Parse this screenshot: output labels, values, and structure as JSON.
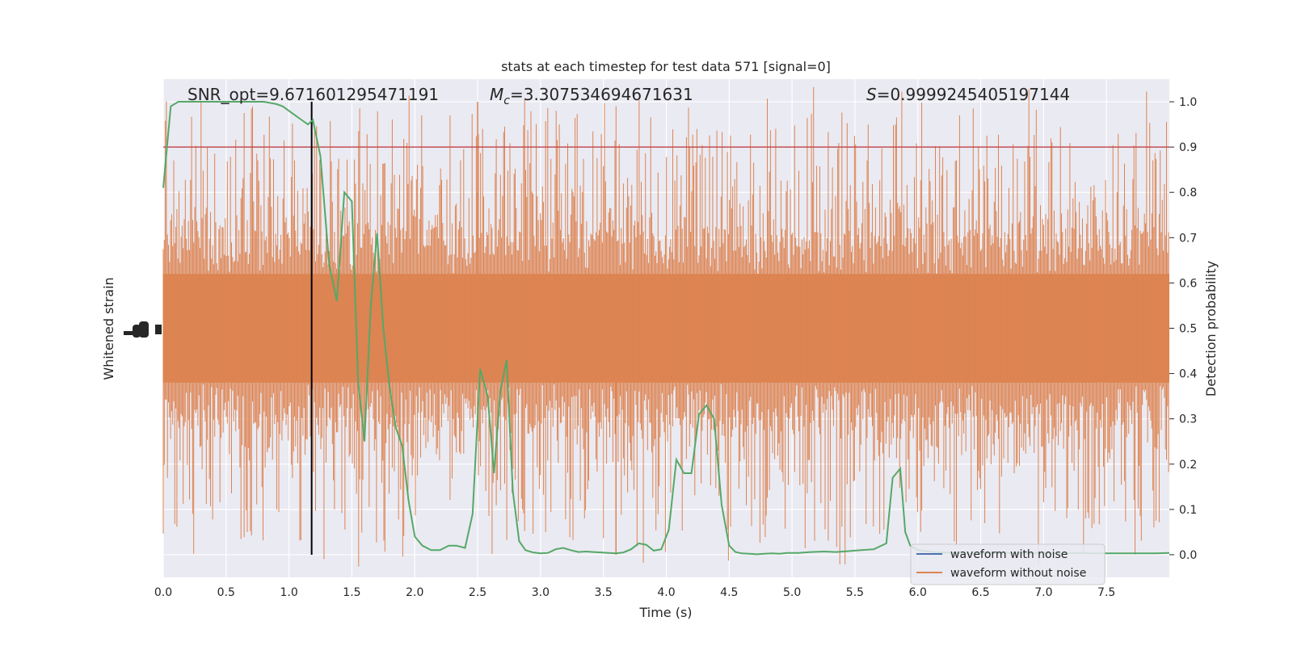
{
  "chart_data": {
    "type": "line",
    "title": "stats at each timestep for test data 571 [signal=0]",
    "xlabel": "Time (s)",
    "ylabel_left": "Whitened strain",
    "ylabel_right": "Detection probability",
    "xlim": [
      0.0,
      8.0
    ],
    "ylim_right": [
      -0.05,
      1.05
    ],
    "x_ticks": [
      "0.0",
      "0.5",
      "1.0",
      "1.5",
      "2.0",
      "2.5",
      "3.0",
      "3.5",
      "4.0",
      "4.5",
      "5.0",
      "5.5",
      "6.0",
      "6.5",
      "7.0",
      "7.5"
    ],
    "y_ticks_right": [
      "0.0",
      "0.1",
      "0.2",
      "0.3",
      "0.4",
      "0.5",
      "0.6",
      "0.7",
      "0.8",
      "0.9",
      "1.0"
    ],
    "grid": true,
    "annotations": {
      "snr": "SNR_opt=9.671601295471191",
      "mc_symbol": "M",
      "mc_sub": "c",
      "mc_value": "=3.307534694671631",
      "s_symbol": "S",
      "s_value": "=0.9999245405197144"
    },
    "threshold": 0.9,
    "marker_time": 1.18,
    "series": [
      {
        "name": "waveform with noise",
        "color": "#4c72b0",
        "values": []
      },
      {
        "name": "waveform without noise",
        "color": "#dd8452",
        "style": "dense-noise",
        "values": []
      },
      {
        "color": "#55a868",
        "x": [
          0.0,
          0.06,
          0.12,
          0.18,
          0.24,
          0.3,
          0.4,
          0.5,
          0.6,
          0.7,
          0.8,
          0.9,
          0.95,
          1.0,
          1.05,
          1.1,
          1.15,
          1.19,
          1.25,
          1.32,
          1.38,
          1.44,
          1.5,
          1.55,
          1.6,
          1.65,
          1.7,
          1.75,
          1.8,
          1.85,
          1.9,
          1.95,
          2.0,
          2.06,
          2.13,
          2.2,
          2.27,
          2.33,
          2.4,
          2.46,
          2.52,
          2.58,
          2.63,
          2.68,
          2.73,
          2.78,
          2.83,
          2.88,
          2.94,
          3.0,
          3.06,
          3.12,
          3.18,
          3.24,
          3.3,
          3.36,
          3.42,
          3.48,
          3.54,
          3.6,
          3.66,
          3.72,
          3.78,
          3.84,
          3.9,
          3.96,
          4.02,
          4.08,
          4.14,
          4.2,
          4.26,
          4.32,
          4.38,
          4.44,
          4.5,
          4.55,
          4.6,
          4.66,
          4.72,
          4.78,
          4.84,
          4.9,
          4.96,
          5.05,
          5.15,
          5.25,
          5.35,
          5.45,
          5.55,
          5.65,
          5.75,
          5.8,
          5.86,
          5.9,
          5.94,
          6.0,
          6.06,
          6.12,
          6.2,
          6.3,
          6.4,
          6.5,
          6.6,
          6.7,
          6.8,
          6.9,
          7.0,
          7.1,
          7.2,
          7.3,
          7.4,
          7.5,
          7.6,
          7.7,
          7.8,
          7.9,
          8.0
        ],
        "values": [
          0.81,
          0.99,
          1.0,
          1.0,
          1.0,
          1.0,
          1.0,
          1.0,
          1.0,
          1.0,
          1.0,
          0.995,
          0.99,
          0.98,
          0.97,
          0.96,
          0.95,
          0.96,
          0.88,
          0.64,
          0.56,
          0.8,
          0.78,
          0.38,
          0.25,
          0.55,
          0.71,
          0.5,
          0.37,
          0.28,
          0.24,
          0.12,
          0.04,
          0.02,
          0.01,
          0.01,
          0.02,
          0.02,
          0.015,
          0.09,
          0.41,
          0.35,
          0.18,
          0.36,
          0.43,
          0.14,
          0.03,
          0.01,
          0.005,
          0.003,
          0.004,
          0.012,
          0.015,
          0.01,
          0.006,
          0.007,
          0.006,
          0.005,
          0.004,
          0.003,
          0.005,
          0.012,
          0.025,
          0.022,
          0.009,
          0.012,
          0.055,
          0.21,
          0.18,
          0.18,
          0.31,
          0.33,
          0.3,
          0.11,
          0.02,
          0.006,
          0.003,
          0.002,
          0.001,
          0.002,
          0.003,
          0.002,
          0.004,
          0.004,
          0.006,
          0.007,
          0.006,
          0.008,
          0.01,
          0.012,
          0.025,
          0.17,
          0.19,
          0.05,
          0.02,
          0.01,
          0.008,
          0.006,
          0.005,
          0.004,
          0.003,
          0.003,
          0.004,
          0.004,
          0.003,
          0.003,
          0.004,
          0.003,
          0.003,
          0.004,
          0.003,
          0.003,
          0.003,
          0.003,
          0.003,
          0.003,
          0.004
        ]
      }
    ]
  }
}
